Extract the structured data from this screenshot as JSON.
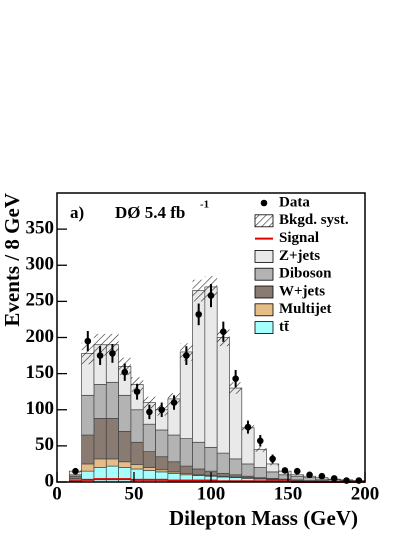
{
  "chart_data": {
    "type": "histogram",
    "xlabel": "Dilepton Mass (GeV)",
    "ylabel": "Events / 8 GeV",
    "annotations": [
      "a)",
      "DØ 5.4 fb",
      "-1"
    ],
    "bins": [
      8,
      16,
      24,
      32,
      40,
      48,
      56,
      64,
      72,
      80,
      88,
      96,
      104,
      112,
      120,
      128,
      136,
      144,
      152,
      160,
      168,
      176,
      184,
      192,
      200
    ],
    "xlim": [
      0,
      200
    ],
    "xticks": [
      0,
      50,
      100,
      150,
      200
    ],
    "ylim": [
      0,
      400
    ],
    "yticks": [
      0,
      50,
      100,
      150,
      200,
      250,
      300,
      350
    ],
    "series": [
      {
        "name": "tt̄",
        "color": "#a6ffff",
        "values": [
          3,
          15,
          20,
          22,
          20,
          18,
          16,
          14,
          12,
          10,
          9,
          8,
          7,
          6,
          5,
          4,
          3,
          3,
          2,
          2,
          1,
          1,
          1,
          1
        ]
      },
      {
        "name": "Multijet",
        "color": "#e6bd87",
        "values": [
          2,
          10,
          12,
          10,
          8,
          6,
          4,
          3,
          2,
          2,
          1,
          1,
          1,
          1,
          1,
          1,
          1,
          0,
          0,
          0,
          0,
          0,
          0,
          0
        ]
      },
      {
        "name": "W+jets",
        "color": "#8a7b72",
        "values": [
          3,
          40,
          56,
          56,
          42,
          31,
          22,
          18,
          14,
          10,
          8,
          6,
          4,
          3,
          2,
          1,
          1,
          1,
          1,
          0,
          1,
          0,
          0,
          0
        ]
      },
      {
        "name": "Diboson",
        "color": "#b3b3b3",
        "values": [
          2,
          55,
          47,
          50,
          50,
          45,
          38,
          37,
          37,
          38,
          37,
          33,
          28,
          22,
          17,
          14,
          9,
          6,
          5,
          4,
          2,
          2,
          1,
          1
        ]
      },
      {
        "name": "Z+jets",
        "color": "#e9e9e9",
        "values": [
          5,
          58,
          55,
          52,
          40,
          35,
          30,
          28,
          50,
          120,
          210,
          222,
          160,
          98,
          50,
          25,
          11,
          5,
          2,
          2,
          2,
          1,
          1,
          0
        ]
      }
    ],
    "syst": {
      "name": "Bkgd. syst.",
      "values": [
        2,
        15,
        15,
        15,
        12,
        10,
        8,
        8,
        8,
        12,
        15,
        15,
        12,
        8,
        5,
        3,
        2,
        1,
        1,
        1,
        1,
        0,
        0,
        0
      ]
    },
    "signal": {
      "name": "Signal",
      "color": "#e00000",
      "values": [
        1,
        3,
        4,
        4,
        4,
        3,
        3,
        3,
        2,
        2,
        2,
        2,
        1,
        1,
        1,
        1,
        1,
        1,
        0,
        0,
        0,
        0,
        0,
        0
      ]
    },
    "data": {
      "name": "Data",
      "color": "#000000",
      "values": [
        15,
        195,
        175,
        178,
        152,
        125,
        97,
        100,
        110,
        175,
        232,
        258,
        208,
        143,
        76,
        57,
        32,
        16,
        15,
        10,
        8,
        5,
        2,
        2
      ],
      "errors": [
        4,
        14,
        13,
        13,
        12,
        11,
        10,
        10,
        10,
        13,
        15,
        16,
        14,
        12,
        9,
        8,
        6,
        4,
        4,
        3,
        3,
        2,
        1,
        1
      ]
    }
  }
}
